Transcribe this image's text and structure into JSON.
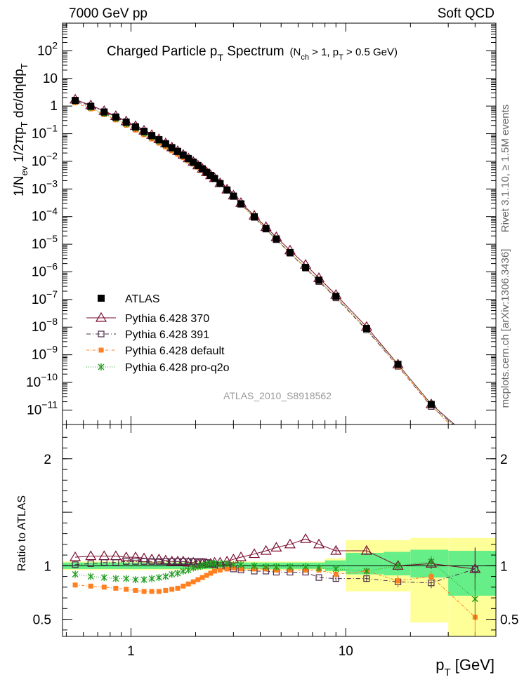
{
  "header": {
    "energy": "7000 GeV pp",
    "process": "Soft QCD"
  },
  "side_labels": {
    "rivet": "Rivet 3.1.10, ≥ 1.5M events",
    "mcplots": "mcplots.cern.ch [arXiv:1306.3436]"
  },
  "chart_data": [
    {
      "type": "scatter",
      "panel": "main",
      "title": "Charged Particle p_T Spectrum (N_ch > 1, p_T > 0.5 GeV)",
      "title_parts": {
        "main": "Charged Particle p",
        "sub": "T",
        "tail": " Spectrum",
        "note": "(N",
        "note_sub1": "ch",
        "note_mid": " > 1, p",
        "note_sub2": "T",
        "note_tail": " > 0.5 GeV)"
      },
      "ylabel": "1/N_ev 1/2πp_T dσ/dηdp_T",
      "ylabel_parts": {
        "a": "1/N",
        "a_sub": "ev",
        "b": " 1/2πp",
        "b_sub": "T",
        "c": " dσ/dηdp",
        "c_sub": "T"
      },
      "yscale": "log",
      "xscale": "log",
      "ylim": [
        3e-12,
        1000
      ],
      "xlim": [
        0.48,
        50
      ],
      "y_ticks": [
        "10^-11",
        "10^-10",
        "10^-9",
        "10^-8",
        "10^-7",
        "10^-6",
        "10^-5",
        "10^-4",
        "10^-3",
        "10^-2",
        "10^-1",
        "1",
        "10",
        "10^2"
      ],
      "watermark": "ATLAS_2010_S8918562",
      "legend_placement": "lower-left",
      "x": [
        0.55,
        0.65,
        0.75,
        0.85,
        0.95,
        1.05,
        1.15,
        1.25,
        1.35,
        1.45,
        1.55,
        1.65,
        1.75,
        1.85,
        1.95,
        2.05,
        2.15,
        2.25,
        2.35,
        2.45,
        2.6,
        2.8,
        3.0,
        3.25,
        3.75,
        4.25,
        4.75,
        5.5,
        6.5,
        7.5,
        9.0,
        12.5,
        17.5,
        25.0,
        40.0
      ],
      "series": [
        {
          "name": "ATLAS",
          "values": [
            1.6,
            0.98,
            0.61,
            0.4,
            0.26,
            0.176,
            0.121,
            0.085,
            0.06,
            0.043,
            0.031,
            0.0228,
            0.0168,
            0.0125,
            0.0093,
            0.007,
            0.0053,
            0.004,
            0.0031,
            0.0024,
            0.00158,
            0.00092,
            0.00055,
            0.00029,
            9.8e-05,
            3.7e-05,
            1.55e-05,
            5e-06,
            1.45e-06,
            5e-07,
            1.3e-07,
            9e-09,
            4.5e-10,
            1.6e-11,
            7e-13
          ]
        },
        {
          "name": "Pythia 6.428 370"
        },
        {
          "name": "Pythia 6.428 391"
        },
        {
          "name": "Pythia 6.428 default"
        },
        {
          "name": "Pythia 6.428 pro-q2o"
        }
      ]
    },
    {
      "type": "line",
      "panel": "ratio",
      "ylabel": "Ratio to ATLAS",
      "xlabel": "p_T [GeV]",
      "xlabel_parts": {
        "a": "p",
        "sub": "T",
        "b": "  [GeV]"
      },
      "ylim": [
        0.34,
        2.32
      ],
      "xlim": [
        0.48,
        50
      ],
      "y_ticks": [
        "0.5",
        "1",
        "2"
      ],
      "x_ticks": [
        "1",
        "10"
      ],
      "x": [
        0.55,
        0.65,
        0.75,
        0.85,
        0.95,
        1.05,
        1.15,
        1.25,
        1.35,
        1.45,
        1.55,
        1.65,
        1.75,
        1.85,
        1.95,
        2.05,
        2.15,
        2.25,
        2.35,
        2.45,
        2.6,
        2.8,
        3.0,
        3.25,
        3.75,
        4.25,
        4.75,
        5.5,
        6.5,
        7.5,
        9.0,
        12.5,
        17.5,
        25.0,
        40.0
      ],
      "series": [
        {
          "name": "Pythia 6.428 370",
          "values": [
            1.08,
            1.09,
            1.09,
            1.09,
            1.08,
            1.08,
            1.07,
            1.06,
            1.06,
            1.05,
            1.04,
            1.04,
            1.04,
            1.03,
            1.03,
            1.02,
            1.02,
            1.02,
            1.02,
            1.03,
            1.03,
            1.04,
            1.06,
            1.08,
            1.11,
            1.14,
            1.17,
            1.2,
            1.25,
            1.2,
            1.14,
            1.14,
            1.0,
            1.02,
            0.97
          ]
        },
        {
          "name": "Pythia 6.428 391",
          "values": [
            1.01,
            1.02,
            1.03,
            1.03,
            1.04,
            1.04,
            1.04,
            1.04,
            1.04,
            1.04,
            1.04,
            1.04,
            1.04,
            1.04,
            1.04,
            1.04,
            1.04,
            1.03,
            1.02,
            1.01,
            1.0,
            0.99,
            0.97,
            0.96,
            0.95,
            0.95,
            0.94,
            0.94,
            0.94,
            0.89,
            0.88,
            0.88,
            0.85,
            0.84,
            0.97
          ]
        },
        {
          "name": "Pythia 6.428 default",
          "values": [
            0.82,
            0.81,
            0.8,
            0.79,
            0.78,
            0.77,
            0.76,
            0.76,
            0.76,
            0.77,
            0.78,
            0.79,
            0.81,
            0.83,
            0.85,
            0.87,
            0.89,
            0.91,
            0.93,
            0.95,
            0.96,
            0.97,
            0.98,
            0.97,
            0.97,
            0.97,
            0.96,
            0.96,
            0.96,
            0.96,
            0.92,
            0.95,
            0.86,
            0.9,
            0.52
          ]
        },
        {
          "name": "Pythia 6.428 pro-q2o",
          "values": [
            0.92,
            0.9,
            0.89,
            0.88,
            0.88,
            0.87,
            0.87,
            0.88,
            0.89,
            0.9,
            0.92,
            0.93,
            0.95,
            0.96,
            0.98,
            0.99,
            1.0,
            1.01,
            1.02,
            1.02,
            1.02,
            1.02,
            1.01,
            1.01,
            1.0,
            0.99,
            0.99,
            0.99,
            0.99,
            0.98,
            0.97,
            0.95,
            1.0,
            1.04,
            0.69
          ]
        }
      ],
      "uncertainty_bands": [
        {
          "x_from": 0.48,
          "x_to": 8.0,
          "inner": [
            0.97,
            1.03
          ],
          "outer": [
            0.96,
            1.04
          ]
        },
        {
          "x_from": 8.0,
          "x_to": 10.0,
          "inner": [
            0.95,
            1.05
          ],
          "outer": [
            0.94,
            1.07
          ]
        },
        {
          "x_from": 10.0,
          "x_to": 15.0,
          "inner": [
            0.92,
            1.12
          ],
          "outer": [
            0.76,
            1.24
          ]
        },
        {
          "x_from": 15.0,
          "x_to": 20.0,
          "inner": [
            0.91,
            1.13
          ],
          "outer": [
            0.76,
            1.24
          ]
        },
        {
          "x_from": 20.0,
          "x_to": 30.0,
          "inner": [
            0.89,
            1.15
          ],
          "outer": [
            0.47,
            1.26
          ]
        },
        {
          "x_from": 30.0,
          "x_to": 50.0,
          "inner": [
            0.72,
            1.14
          ],
          "outer": [
            0.34,
            1.26
          ]
        }
      ],
      "colors": {
        "band_inner": "#66ee88",
        "band_outer": "#ffff99",
        "s370": "#7a0c2e",
        "s391": "#4a2a4a",
        "default": "#ff8020",
        "q2o": "#1e9e1e"
      }
    }
  ]
}
